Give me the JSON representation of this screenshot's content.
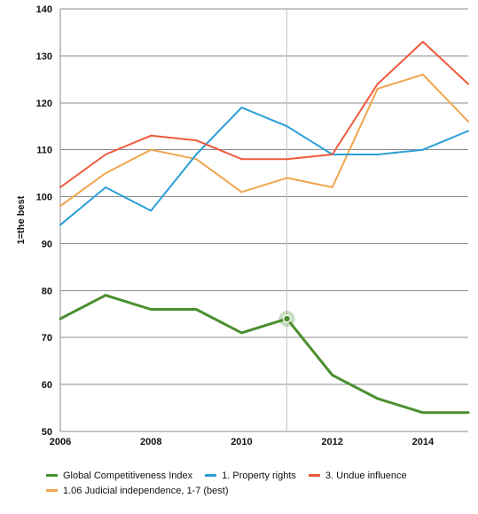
{
  "chart_data": {
    "type": "line",
    "ylabel": "1=the best",
    "xlabel": "",
    "ylim": [
      50,
      140
    ],
    "xlim": [
      2006,
      2015
    ],
    "y_ticks": [
      "50",
      "60",
      "70",
      "80",
      "90",
      "100",
      "110",
      "120",
      "130",
      "140"
    ],
    "x_ticks": [
      "2006",
      "2008",
      "2010",
      "2012",
      "2014"
    ],
    "grid": "horizontal",
    "legend_position": "bottom",
    "x": [
      2006,
      2007,
      2008,
      2009,
      2010,
      2011,
      2012,
      2013,
      2014,
      2015
    ],
    "crosshair_x": 2011,
    "highlight": {
      "series": "Global Competitiveness Index",
      "x": 2011,
      "y": 74
    },
    "series": [
      {
        "name": "Global Competitiveness Index",
        "color": "#4a8f2f",
        "values": [
          74,
          79,
          76,
          76,
          71,
          74,
          62,
          57,
          54,
          54
        ]
      },
      {
        "name": "1. Property rights",
        "color": "#2a9fd6",
        "values": [
          94,
          102,
          97,
          109,
          119,
          115,
          109,
          109,
          110,
          114
        ]
      },
      {
        "name": "3. Undue influence",
        "color": "#ef5a3b",
        "values": [
          102,
          109,
          113,
          112,
          108,
          108,
          109,
          124,
          133,
          124
        ]
      },
      {
        "name": "1.06 Judicial independence, 1-7 (best)",
        "color": "#f0a54e",
        "values": [
          98,
          105,
          110,
          108,
          101,
          104,
          102,
          123,
          126,
          116
        ]
      }
    ]
  },
  "legend": {
    "rows": [
      [
        {
          "label": "Global Competitiveness Index",
          "color": "#4a8f2f"
        },
        {
          "label": "1. Property rights",
          "color": "#2a9fd6"
        },
        {
          "label": "3. Undue influence",
          "color": "#ef5a3b"
        }
      ],
      [
        {
          "label": "1.06 Judicial independence, 1-7 (best)",
          "color": "#f0a54e"
        }
      ]
    ]
  }
}
